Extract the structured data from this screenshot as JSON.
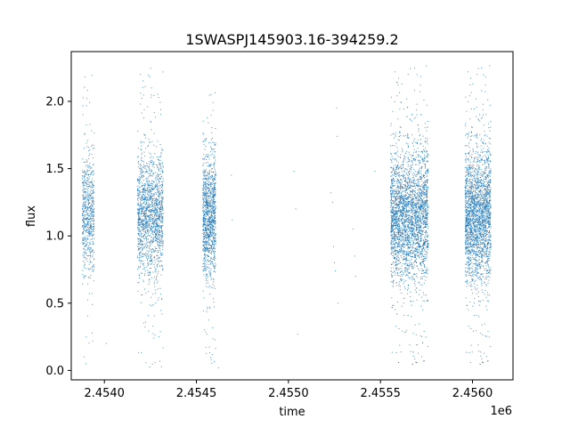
{
  "chart_data": {
    "type": "scatter",
    "title": "1SWASPJ145903.16-394259.2",
    "xlabel": "time",
    "ylabel": "flux",
    "x_offset_label": "1e6",
    "xlim": [
      2453820,
      2456220
    ],
    "ylim": [
      -0.07,
      2.37
    ],
    "x_ticks": [
      2454000,
      2454500,
      2455000,
      2455500,
      2456000
    ],
    "x_tick_labels": [
      "2.4540",
      "2.4545",
      "2.4550",
      "2.4555",
      "2.4560"
    ],
    "y_ticks": [
      0.0,
      0.5,
      1.0,
      1.5,
      2.0
    ],
    "y_tick_labels": [
      "0.0",
      "0.5",
      "1.0",
      "1.5",
      "2.0"
    ],
    "grid": false,
    "marker_color": "#1f77b4",
    "series": [
      {
        "clusters": [
          {
            "x_range": [
              2453880,
              2453945
            ],
            "center": 1.15,
            "spread": 0.22,
            "n": 650,
            "y_max": 2.25
          },
          {
            "x_range": [
              2454180,
              2454320
            ],
            "center": 1.15,
            "spread": 0.22,
            "n": 1600,
            "y_max": 2.25
          },
          {
            "x_range": [
              2454535,
              2454605
            ],
            "center": 1.15,
            "spread": 0.22,
            "n": 1200,
            "y_max": 2.07
          },
          {
            "x_range": [
              2455555,
              2455760
            ],
            "center": 1.15,
            "spread": 0.24,
            "n": 3200,
            "y_max": 2.27
          },
          {
            "x_range": [
              2455960,
              2456100
            ],
            "center": 1.15,
            "spread": 0.24,
            "n": 2400,
            "y_max": 2.27
          }
        ],
        "points": [
          [
            2454690,
            1.45
          ],
          [
            2454695,
            1.12
          ],
          [
            2455030,
            1.48
          ],
          [
            2455040,
            1.2
          ],
          [
            2455050,
            0.27
          ],
          [
            2455230,
            1.32
          ],
          [
            2455240,
            1.25
          ],
          [
            2455245,
            0.92
          ],
          [
            2455250,
            0.8
          ],
          [
            2455255,
            0.74
          ],
          [
            2455262,
            1.95
          ],
          [
            2455265,
            1.74
          ],
          [
            2455270,
            0.5
          ],
          [
            2455350,
            1.05
          ],
          [
            2455360,
            0.85
          ],
          [
            2455365,
            0.7
          ],
          [
            2454010,
            0.2
          ],
          [
            2453900,
            0.05
          ],
          [
            2454620,
            0.02
          ],
          [
            2455470,
            1.48
          ]
        ]
      }
    ]
  }
}
